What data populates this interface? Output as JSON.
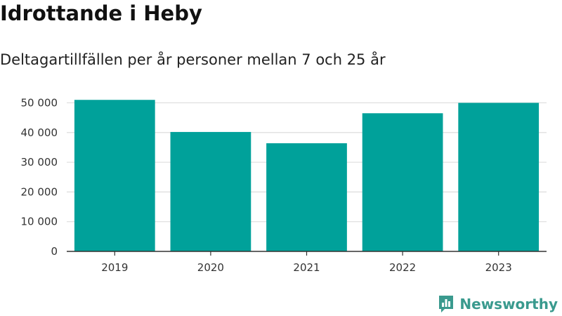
{
  "title": "Idrottande i Heby",
  "subtitle": "Deltagartillfällen per år personer mellan 7 och 25 år",
  "brand": {
    "name": "Newsworthy",
    "color": "#3a9a8e",
    "icon": "newsworthy-logo-icon"
  },
  "colors": {
    "bar": "#00a19a",
    "grid": "#dddddd",
    "axis": "#333333"
  },
  "chart_data": {
    "type": "bar",
    "categories": [
      "2019",
      "2020",
      "2021",
      "2022",
      "2023"
    ],
    "values": [
      51000,
      40200,
      36400,
      46500,
      50000
    ],
    "yticks": [
      0,
      10000,
      20000,
      30000,
      40000,
      50000
    ],
    "ytick_labels": [
      "0",
      "10 000",
      "20 000",
      "30 000",
      "40 000",
      "50 000"
    ],
    "ylim": [
      0,
      52000
    ],
    "grid": true,
    "legend": "none"
  }
}
